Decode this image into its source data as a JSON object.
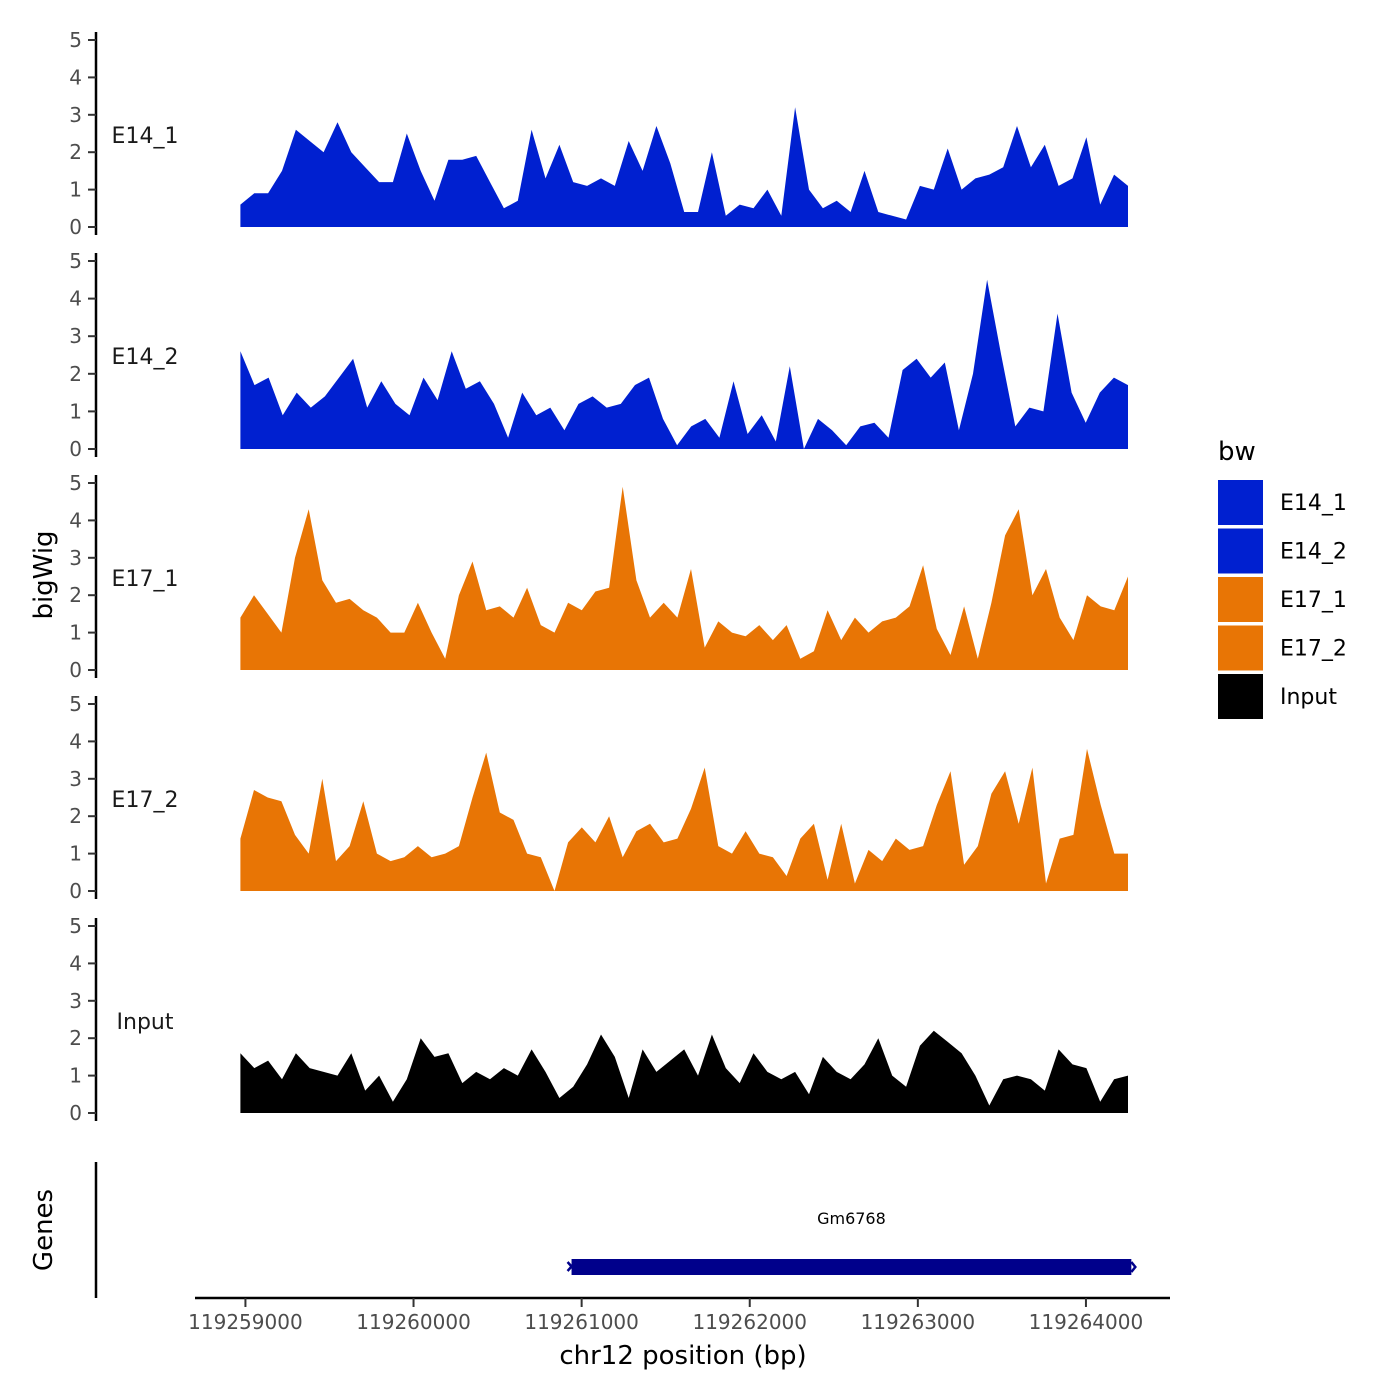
{
  "chart_data": {
    "type": "area",
    "title": "",
    "chromosome": "chr12",
    "xlabel": "chr12 position (bp)",
    "ylabel": "bigWig",
    "genes_panel_label": "Genes",
    "xlim": [
      119258700,
      119264500
    ],
    "x_ticks": [
      119259000,
      119260000,
      119261000,
      119262000,
      119263000,
      119264000
    ],
    "x_tick_labels": [
      "119259000",
      "119260000",
      "119261000",
      "119262000",
      "119263000",
      "119264000"
    ],
    "ylim": [
      0,
      5
    ],
    "y_ticks": [
      0,
      1,
      2,
      3,
      4,
      5
    ],
    "y_tick_labels": [
      "0",
      "1",
      "2",
      "3",
      "4",
      "5"
    ],
    "x_start": 119258970,
    "x_end": 119264250,
    "legend": {
      "title": "bw",
      "position": "right",
      "entries": [
        {
          "label": "E14_1",
          "color": "#0020D0"
        },
        {
          "label": "E14_2",
          "color": "#0020D0"
        },
        {
          "label": "E17_1",
          "color": "#E87505"
        },
        {
          "label": "E17_2",
          "color": "#E87505"
        },
        {
          "label": "Input",
          "color": "#000000"
        }
      ]
    },
    "series": [
      {
        "name": "E14_1",
        "color": "#0020D0",
        "values": [
          0.6,
          0.9,
          0.9,
          1.5,
          2.6,
          2.3,
          2.0,
          2.8,
          2.0,
          1.6,
          1.2,
          1.2,
          2.5,
          1.5,
          0.7,
          1.8,
          1.8,
          1.9,
          1.2,
          0.5,
          0.7,
          2.6,
          1.3,
          2.2,
          1.2,
          1.1,
          1.3,
          1.1,
          2.3,
          1.5,
          2.7,
          1.7,
          0.4,
          0.4,
          2.0,
          0.3,
          0.6,
          0.5,
          1.0,
          0.3,
          3.2,
          1.0,
          0.5,
          0.7,
          0.4,
          1.5,
          0.4,
          0.3,
          0.2,
          1.1,
          1.0,
          2.1,
          1.0,
          1.3,
          1.4,
          1.6,
          2.7,
          1.6,
          2.2,
          1.1,
          1.3,
          2.4,
          0.6,
          1.4,
          1.1
        ]
      },
      {
        "name": "E14_2",
        "color": "#0020D0",
        "values": [
          2.6,
          1.7,
          1.9,
          0.9,
          1.5,
          1.1,
          1.4,
          1.9,
          2.4,
          1.1,
          1.8,
          1.2,
          0.9,
          1.9,
          1.3,
          2.6,
          1.6,
          1.8,
          1.2,
          0.3,
          1.5,
          0.9,
          1.1,
          0.5,
          1.2,
          1.4,
          1.1,
          1.2,
          1.7,
          1.9,
          0.8,
          0.1,
          0.6,
          0.8,
          0.3,
          1.8,
          0.4,
          0.9,
          0.2,
          2.2,
          -0.1,
          0.8,
          0.5,
          0.1,
          0.6,
          0.7,
          0.3,
          2.1,
          2.4,
          1.9,
          2.3,
          0.5,
          2.0,
          4.5,
          2.5,
          0.6,
          1.1,
          1.0,
          3.6,
          1.5,
          0.7,
          1.5,
          1.9,
          1.7
        ]
      },
      {
        "name": "E17_1",
        "color": "#E87505",
        "values": [
          1.4,
          2.0,
          1.5,
          1.0,
          3.0,
          4.3,
          2.4,
          1.8,
          1.9,
          1.6,
          1.4,
          1.0,
          1.0,
          1.8,
          1.0,
          0.3,
          2.0,
          2.9,
          1.6,
          1.7,
          1.4,
          2.2,
          1.2,
          1.0,
          1.8,
          1.6,
          2.1,
          2.2,
          4.9,
          2.4,
          1.4,
          1.8,
          1.4,
          2.7,
          0.6,
          1.3,
          1.0,
          0.9,
          1.2,
          0.8,
          1.2,
          0.3,
          0.5,
          1.6,
          0.8,
          1.4,
          1.0,
          1.3,
          1.4,
          1.7,
          2.8,
          1.1,
          0.4,
          1.7,
          0.3,
          1.8,
          3.6,
          4.3,
          2.0,
          2.7,
          1.4,
          0.8,
          2.0,
          1.7,
          1.6,
          2.5
        ]
      },
      {
        "name": "E17_2",
        "color": "#E87505",
        "values": [
          1.4,
          2.7,
          2.5,
          2.4,
          1.5,
          1.0,
          3.0,
          0.8,
          1.2,
          2.4,
          1.0,
          0.8,
          0.9,
          1.2,
          0.9,
          1.0,
          1.2,
          2.5,
          3.7,
          2.1,
          1.9,
          1.0,
          0.9,
          0.0,
          1.3,
          1.7,
          1.3,
          2.0,
          0.9,
          1.6,
          1.8,
          1.3,
          1.4,
          2.2,
          3.3,
          1.2,
          1.0,
          1.6,
          1.0,
          0.9,
          0.4,
          1.4,
          1.8,
          0.3,
          1.8,
          0.2,
          1.1,
          0.8,
          1.4,
          1.1,
          1.2,
          2.3,
          3.2,
          0.7,
          1.2,
          2.6,
          3.2,
          1.8,
          3.3,
          0.2,
          1.4,
          1.5,
          3.8,
          2.3,
          1.0,
          1.0
        ]
      },
      {
        "name": "Input",
        "color": "#000000",
        "values": [
          1.6,
          1.2,
          1.4,
          0.9,
          1.6,
          1.2,
          1.1,
          1.0,
          1.6,
          0.6,
          1.0,
          0.3,
          0.9,
          2.0,
          1.5,
          1.6,
          0.8,
          1.1,
          0.9,
          1.2,
          1.0,
          1.7,
          1.1,
          0.4,
          0.7,
          1.3,
          2.1,
          1.5,
          0.4,
          1.7,
          1.1,
          1.4,
          1.7,
          1.0,
          2.1,
          1.2,
          0.8,
          1.6,
          1.1,
          0.9,
          1.1,
          0.5,
          1.5,
          1.1,
          0.9,
          1.3,
          2.0,
          1.0,
          0.7,
          1.8,
          2.2,
          1.9,
          1.6,
          1.0,
          0.2,
          0.9,
          1.0,
          0.9,
          0.6,
          1.7,
          1.3,
          1.2,
          0.3,
          0.9,
          1.0
        ]
      }
    ],
    "genes": [
      {
        "name": "Gm6768",
        "start": 119260940,
        "end": 119264270,
        "strand": "-",
        "color": "#00008B"
      }
    ]
  }
}
